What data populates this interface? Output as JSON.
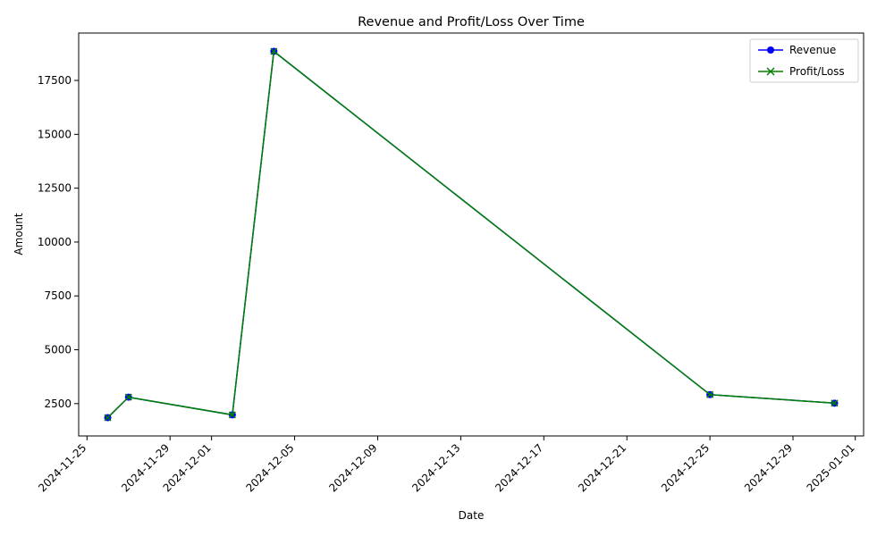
{
  "chart_data": {
    "type": "line",
    "title": "Revenue and Profit/Loss Over Time",
    "xlabel": "Date",
    "ylabel": "Amount",
    "x": [
      "2024-11-26",
      "2024-11-27",
      "2024-12-02",
      "2024-12-04",
      "2024-12-25",
      "2024-12-31"
    ],
    "series": [
      {
        "name": "Revenue",
        "color": "#0000ff",
        "marker": "circle",
        "values": [
          1850,
          2800,
          1980,
          18850,
          2920,
          2520
        ]
      },
      {
        "name": "Profit/Loss",
        "color": "#008000",
        "marker": "x",
        "values": [
          1850,
          2800,
          1980,
          18850,
          2920,
          2520
        ]
      }
    ],
    "xticks": [
      "2024-11-25",
      "2024-11-29",
      "2024-12-01",
      "2024-12-05",
      "2024-12-09",
      "2024-12-13",
      "2024-12-17",
      "2024-12-21",
      "2024-12-25",
      "2024-12-29",
      "2025-01-01"
    ],
    "yticks": [
      2500,
      5000,
      7500,
      10000,
      12500,
      15000,
      17500
    ],
    "xlim": [
      "2024-11-25",
      "2025-01-01"
    ],
    "ylim": [
      1000,
      19700
    ],
    "legend": "top-right",
    "grid": false
  }
}
